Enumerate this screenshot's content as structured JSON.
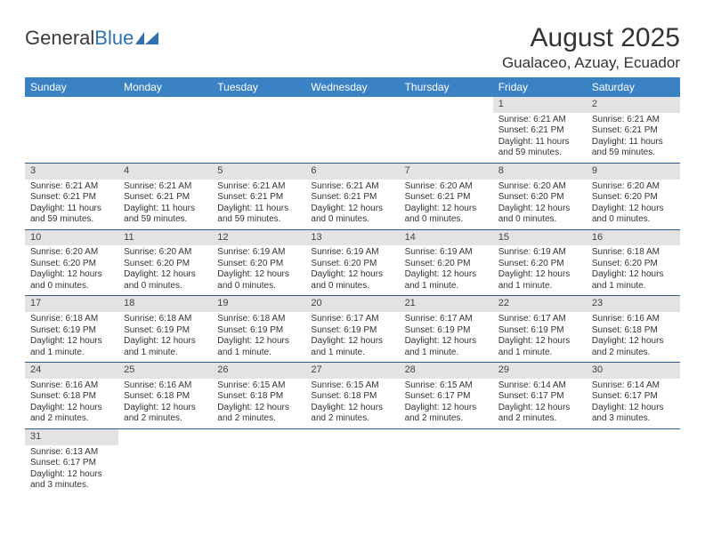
{
  "logo": {
    "word1": "General",
    "word2": "Blue"
  },
  "title": "August 2025",
  "location": "Gualaceo, Azuay, Ecuador",
  "theme": {
    "header_bg": "#3b82c4",
    "header_fg": "#ffffff",
    "daynum_bg": "#e3e3e3",
    "rule_color": "#2c5f8d",
    "text_color": "#333333"
  },
  "weekdays": [
    "Sunday",
    "Monday",
    "Tuesday",
    "Wednesday",
    "Thursday",
    "Friday",
    "Saturday"
  ],
  "weeks": [
    [
      null,
      null,
      null,
      null,
      null,
      {
        "n": "1",
        "sr": "Sunrise: 6:21 AM",
        "ss": "Sunset: 6:21 PM",
        "dl1": "Daylight: 11 hours",
        "dl2": "and 59 minutes."
      },
      {
        "n": "2",
        "sr": "Sunrise: 6:21 AM",
        "ss": "Sunset: 6:21 PM",
        "dl1": "Daylight: 11 hours",
        "dl2": "and 59 minutes."
      }
    ],
    [
      {
        "n": "3",
        "sr": "Sunrise: 6:21 AM",
        "ss": "Sunset: 6:21 PM",
        "dl1": "Daylight: 11 hours",
        "dl2": "and 59 minutes."
      },
      {
        "n": "4",
        "sr": "Sunrise: 6:21 AM",
        "ss": "Sunset: 6:21 PM",
        "dl1": "Daylight: 11 hours",
        "dl2": "and 59 minutes."
      },
      {
        "n": "5",
        "sr": "Sunrise: 6:21 AM",
        "ss": "Sunset: 6:21 PM",
        "dl1": "Daylight: 11 hours",
        "dl2": "and 59 minutes."
      },
      {
        "n": "6",
        "sr": "Sunrise: 6:21 AM",
        "ss": "Sunset: 6:21 PM",
        "dl1": "Daylight: 12 hours",
        "dl2": "and 0 minutes."
      },
      {
        "n": "7",
        "sr": "Sunrise: 6:20 AM",
        "ss": "Sunset: 6:21 PM",
        "dl1": "Daylight: 12 hours",
        "dl2": "and 0 minutes."
      },
      {
        "n": "8",
        "sr": "Sunrise: 6:20 AM",
        "ss": "Sunset: 6:20 PM",
        "dl1": "Daylight: 12 hours",
        "dl2": "and 0 minutes."
      },
      {
        "n": "9",
        "sr": "Sunrise: 6:20 AM",
        "ss": "Sunset: 6:20 PM",
        "dl1": "Daylight: 12 hours",
        "dl2": "and 0 minutes."
      }
    ],
    [
      {
        "n": "10",
        "sr": "Sunrise: 6:20 AM",
        "ss": "Sunset: 6:20 PM",
        "dl1": "Daylight: 12 hours",
        "dl2": "and 0 minutes."
      },
      {
        "n": "11",
        "sr": "Sunrise: 6:20 AM",
        "ss": "Sunset: 6:20 PM",
        "dl1": "Daylight: 12 hours",
        "dl2": "and 0 minutes."
      },
      {
        "n": "12",
        "sr": "Sunrise: 6:19 AM",
        "ss": "Sunset: 6:20 PM",
        "dl1": "Daylight: 12 hours",
        "dl2": "and 0 minutes."
      },
      {
        "n": "13",
        "sr": "Sunrise: 6:19 AM",
        "ss": "Sunset: 6:20 PM",
        "dl1": "Daylight: 12 hours",
        "dl2": "and 0 minutes."
      },
      {
        "n": "14",
        "sr": "Sunrise: 6:19 AM",
        "ss": "Sunset: 6:20 PM",
        "dl1": "Daylight: 12 hours",
        "dl2": "and 1 minute."
      },
      {
        "n": "15",
        "sr": "Sunrise: 6:19 AM",
        "ss": "Sunset: 6:20 PM",
        "dl1": "Daylight: 12 hours",
        "dl2": "and 1 minute."
      },
      {
        "n": "16",
        "sr": "Sunrise: 6:18 AM",
        "ss": "Sunset: 6:20 PM",
        "dl1": "Daylight: 12 hours",
        "dl2": "and 1 minute."
      }
    ],
    [
      {
        "n": "17",
        "sr": "Sunrise: 6:18 AM",
        "ss": "Sunset: 6:19 PM",
        "dl1": "Daylight: 12 hours",
        "dl2": "and 1 minute."
      },
      {
        "n": "18",
        "sr": "Sunrise: 6:18 AM",
        "ss": "Sunset: 6:19 PM",
        "dl1": "Daylight: 12 hours",
        "dl2": "and 1 minute."
      },
      {
        "n": "19",
        "sr": "Sunrise: 6:18 AM",
        "ss": "Sunset: 6:19 PM",
        "dl1": "Daylight: 12 hours",
        "dl2": "and 1 minute."
      },
      {
        "n": "20",
        "sr": "Sunrise: 6:17 AM",
        "ss": "Sunset: 6:19 PM",
        "dl1": "Daylight: 12 hours",
        "dl2": "and 1 minute."
      },
      {
        "n": "21",
        "sr": "Sunrise: 6:17 AM",
        "ss": "Sunset: 6:19 PM",
        "dl1": "Daylight: 12 hours",
        "dl2": "and 1 minute."
      },
      {
        "n": "22",
        "sr": "Sunrise: 6:17 AM",
        "ss": "Sunset: 6:19 PM",
        "dl1": "Daylight: 12 hours",
        "dl2": "and 1 minute."
      },
      {
        "n": "23",
        "sr": "Sunrise: 6:16 AM",
        "ss": "Sunset: 6:18 PM",
        "dl1": "Daylight: 12 hours",
        "dl2": "and 2 minutes."
      }
    ],
    [
      {
        "n": "24",
        "sr": "Sunrise: 6:16 AM",
        "ss": "Sunset: 6:18 PM",
        "dl1": "Daylight: 12 hours",
        "dl2": "and 2 minutes."
      },
      {
        "n": "25",
        "sr": "Sunrise: 6:16 AM",
        "ss": "Sunset: 6:18 PM",
        "dl1": "Daylight: 12 hours",
        "dl2": "and 2 minutes."
      },
      {
        "n": "26",
        "sr": "Sunrise: 6:15 AM",
        "ss": "Sunset: 6:18 PM",
        "dl1": "Daylight: 12 hours",
        "dl2": "and 2 minutes."
      },
      {
        "n": "27",
        "sr": "Sunrise: 6:15 AM",
        "ss": "Sunset: 6:18 PM",
        "dl1": "Daylight: 12 hours",
        "dl2": "and 2 minutes."
      },
      {
        "n": "28",
        "sr": "Sunrise: 6:15 AM",
        "ss": "Sunset: 6:17 PM",
        "dl1": "Daylight: 12 hours",
        "dl2": "and 2 minutes."
      },
      {
        "n": "29",
        "sr": "Sunrise: 6:14 AM",
        "ss": "Sunset: 6:17 PM",
        "dl1": "Daylight: 12 hours",
        "dl2": "and 2 minutes."
      },
      {
        "n": "30",
        "sr": "Sunrise: 6:14 AM",
        "ss": "Sunset: 6:17 PM",
        "dl1": "Daylight: 12 hours",
        "dl2": "and 3 minutes."
      }
    ],
    [
      {
        "n": "31",
        "sr": "Sunrise: 6:13 AM",
        "ss": "Sunset: 6:17 PM",
        "dl1": "Daylight: 12 hours",
        "dl2": "and 3 minutes."
      },
      null,
      null,
      null,
      null,
      null,
      null
    ]
  ]
}
